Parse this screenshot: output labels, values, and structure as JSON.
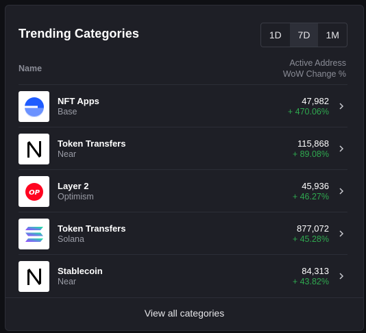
{
  "header": {
    "title": "Trending Categories",
    "ranges": [
      "1D",
      "7D",
      "1M"
    ],
    "active_range": "7D"
  },
  "columns": {
    "name": "Name",
    "metric_line1": "Active Address",
    "metric_line2": "WoW Change %"
  },
  "rows": [
    {
      "category": "NFT Apps",
      "chain": "Base",
      "value": "47,982",
      "change": "+ 470.06%",
      "logo": "base-logo"
    },
    {
      "category": "Token Transfers",
      "chain": "Near",
      "value": "115,868",
      "change": "+ 89.08%",
      "logo": "near-logo"
    },
    {
      "category": "Layer 2",
      "chain": "Optimism",
      "value": "45,936",
      "change": "+ 46.27%",
      "logo": "optimism-logo"
    },
    {
      "category": "Token Transfers",
      "chain": "Solana",
      "value": "877,072",
      "change": "+ 45.28%",
      "logo": "solana-logo"
    },
    {
      "category": "Stablecoin",
      "chain": "Near",
      "value": "84,313",
      "change": "+ 43.82%",
      "logo": "near-logo"
    }
  ],
  "footer": {
    "view_all": "View all categories"
  },
  "colors": {
    "positive": "#2fa84f",
    "base_blue": "#1f5cff",
    "optimism_red": "#ff0420"
  }
}
